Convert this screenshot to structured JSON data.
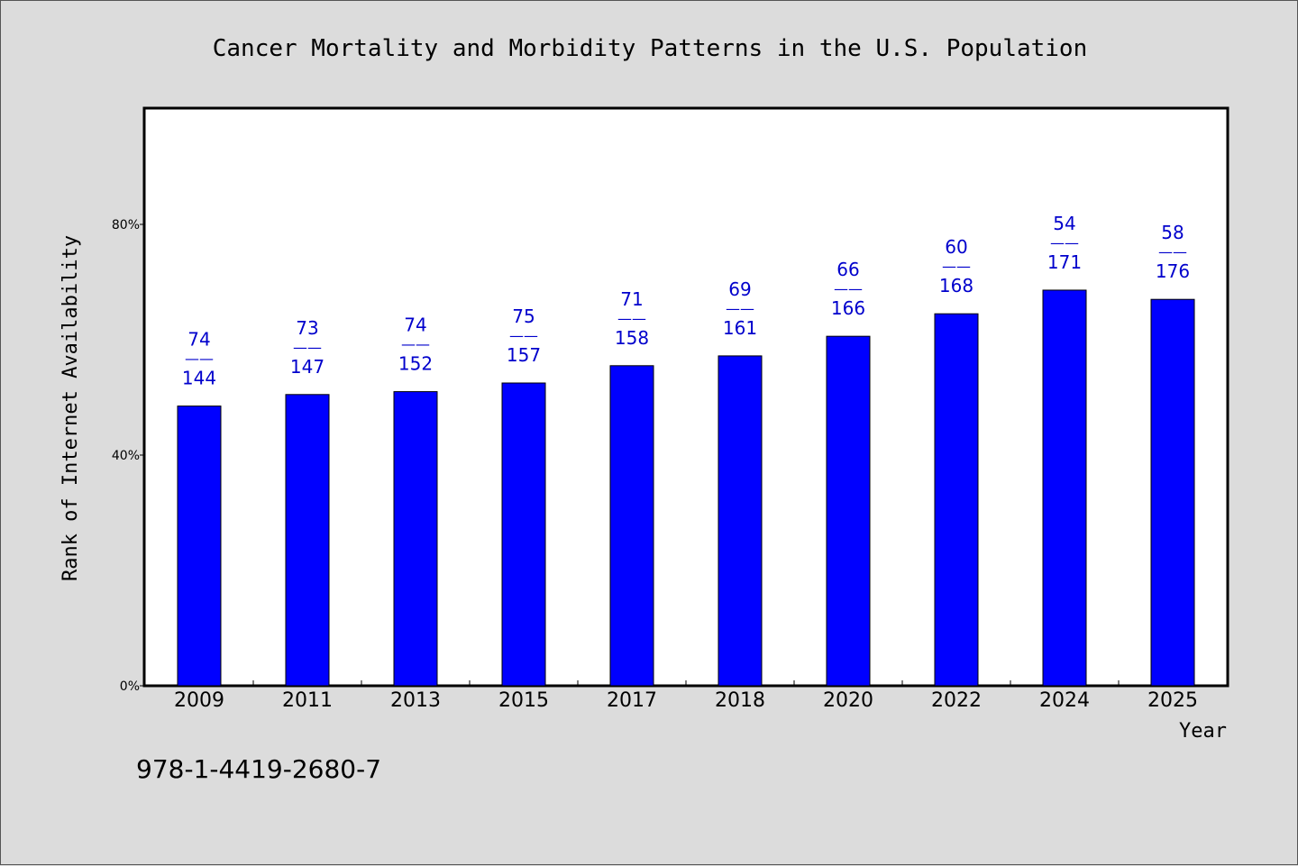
{
  "chart_data": {
    "type": "bar",
    "title": "Cancer Mortality and Morbidity Patterns in the U.S. Population",
    "xlabel": "Year",
    "ylabel": "Rank of Internet Availability",
    "categories": [
      "2009",
      "2011",
      "2013",
      "2015",
      "2017",
      "2018",
      "2020",
      "2022",
      "2024",
      "2025"
    ],
    "values": [
      48.5,
      50.5,
      51.0,
      52.5,
      55.5,
      57.2,
      60.6,
      64.5,
      68.6,
      67.0
    ],
    "value_labels": [
      {
        "top": "74",
        "sep": "——",
        "bottom": "144"
      },
      {
        "top": "73",
        "sep": "——",
        "bottom": "147"
      },
      {
        "top": "74",
        "sep": "——",
        "bottom": "152"
      },
      {
        "top": "75",
        "sep": "——",
        "bottom": "157"
      },
      {
        "top": "71",
        "sep": "——",
        "bottom": "158"
      },
      {
        "top": "69",
        "sep": "——",
        "bottom": "161"
      },
      {
        "top": "66",
        "sep": "——",
        "bottom": "166"
      },
      {
        "top": "60",
        "sep": "——",
        "bottom": "168"
      },
      {
        "top": "54",
        "sep": "——",
        "bottom": "171"
      },
      {
        "top": "58",
        "sep": "——",
        "bottom": "176"
      }
    ],
    "ylim": [
      0,
      100
    ],
    "yticks": [
      0,
      40,
      80
    ],
    "ytick_labels": [
      "0%",
      "40%",
      "80%"
    ],
    "grid": false,
    "legend": "none",
    "bar_color": "#0000ff",
    "label_color": "#0000cc"
  },
  "footer": {
    "code": "978-1-4419-2680-7"
  }
}
